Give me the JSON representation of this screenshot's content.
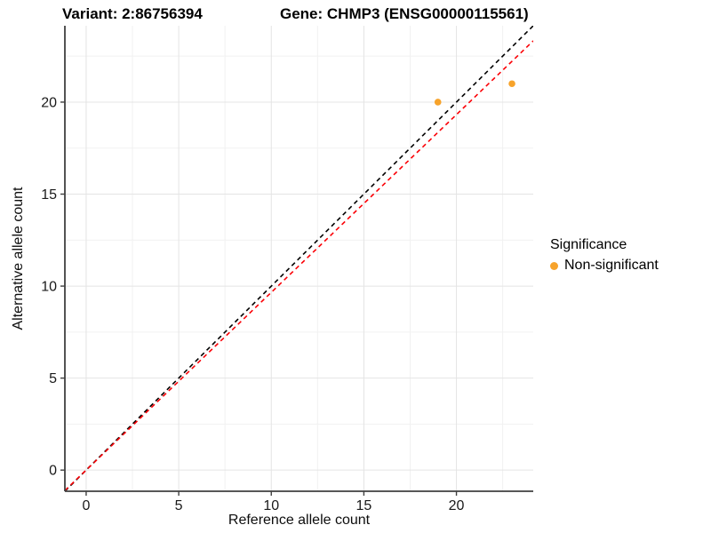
{
  "titles": {
    "variant": "Variant: 2:86756394",
    "gene": "Gene: CHMP3 (ENSG00000115561)"
  },
  "chart_data": {
    "type": "scatter",
    "xlabel": "Reference allele count",
    "ylabel": "Alternative allele count",
    "xlim": [
      -1.15,
      24.15
    ],
    "ylim": [
      -1.15,
      24.15
    ],
    "x_ticks": [
      0,
      5,
      10,
      15,
      20
    ],
    "y_ticks": [
      0,
      5,
      10,
      15,
      20
    ],
    "minor_ticks": [
      2.5,
      7.5,
      12.5,
      17.5,
      22.5
    ],
    "grid": "major+minor",
    "points": [
      {
        "x": 19,
        "y": 20,
        "series": "Non-significant"
      },
      {
        "x": 23,
        "y": 21,
        "series": "Non-significant"
      }
    ],
    "lines": [
      {
        "name": "identity-line",
        "slope": 1,
        "intercept": 0,
        "style": "dashed",
        "color": "#000000"
      },
      {
        "name": "allelic-ratio-line",
        "slope": 0.966,
        "intercept": 0,
        "style": "dashed",
        "color": "#FB0006"
      }
    ],
    "legend": {
      "title": "Significance",
      "position": "right",
      "items": [
        {
          "label": "Non-significant",
          "color": "#F7A32B"
        }
      ]
    }
  },
  "style_colors": {
    "point": "#F7A32B",
    "grid_major": "#E4E4E4",
    "grid_minor": "#F1F1F1",
    "axis_line": "#404040",
    "tick_label": "#1a1a1a"
  }
}
